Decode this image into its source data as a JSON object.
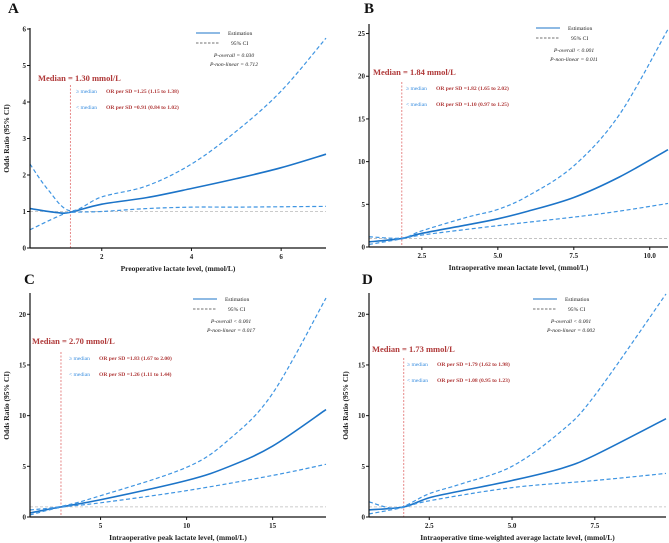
{
  "colors": {
    "estimate": "#1c74c8",
    "ci": "#3f95e2",
    "median_line": "#e06a6a",
    "median_text": "#b03a3a",
    "reference": "#bbbbbb"
  },
  "chart_data": [
    {
      "type": "line",
      "letter": "A",
      "xlabel": "Preoperative lactate level, (mmol/L)",
      "ylabel": "Odds Ratio (95% CI)",
      "xlim": [
        0.4,
        7.0
      ],
      "ylim": [
        0,
        6
      ],
      "xticks": [
        2,
        4,
        6
      ],
      "yticks": [
        0,
        1,
        2,
        3,
        4,
        5,
        6
      ],
      "reference_y": 1,
      "median_x": 1.3,
      "legend": {
        "estimation": "Estimation",
        "ci": "95% CI",
        "p_overall": "P-overall = 0.030",
        "p_nonlinear": "P-non-linear = 0.712"
      },
      "median_label": "Median = 1.30 mmol/L",
      "ge_median": "≥ median",
      "ge_or": "OR per SD =1.25 (1.15 to 1.38)",
      "lt_median": "< median",
      "lt_or": "OR per SD =0.91 (0.84 to 1.02)",
      "series": [
        {
          "name": "Estimation",
          "points": [
            [
              0.4,
              1.08
            ],
            [
              1.0,
              0.97
            ],
            [
              1.3,
              0.98
            ],
            [
              2,
              1.2
            ],
            [
              3,
              1.38
            ],
            [
              4,
              1.63
            ],
            [
              5,
              1.9
            ],
            [
              6,
              2.2
            ],
            [
              7,
              2.57
            ]
          ]
        },
        {
          "name": "95% CI upper",
          "points": [
            [
              0.4,
              2.3
            ],
            [
              0.8,
              1.6
            ],
            [
              1.3,
              1.02
            ],
            [
              2,
              1.4
            ],
            [
              3,
              1.7
            ],
            [
              4,
              2.3
            ],
            [
              5,
              3.2
            ],
            [
              6,
              4.3
            ],
            [
              7,
              5.75
            ]
          ]
        },
        {
          "name": "95% CI lower",
          "points": [
            [
              0.4,
              0.5
            ],
            [
              1.0,
              0.85
            ],
            [
              1.3,
              0.97
            ],
            [
              2,
              1.0
            ],
            [
              3,
              1.08
            ],
            [
              4,
              1.12
            ],
            [
              5,
              1.12
            ],
            [
              6,
              1.13
            ],
            [
              7,
              1.14
            ]
          ]
        }
      ]
    },
    {
      "type": "line",
      "letter": "B",
      "xlabel": "Intraoperative mean lactate level, (mmol/L)",
      "ylabel": "",
      "xlim": [
        0.76,
        10.6
      ],
      "ylim": [
        0,
        26
      ],
      "xticks": [
        2.5,
        5.0,
        7.5,
        10.0
      ],
      "yticks": [
        0,
        5,
        10,
        15,
        20,
        25
      ],
      "reference_y": 1,
      "median_x": 1.84,
      "legend": {
        "estimation": "Estimation",
        "ci": "95% CI",
        "p_overall": "P-overall < 0.001",
        "p_nonlinear": "P-non-linear = 0.011"
      },
      "median_label": "Median = 1.84 mmol/L",
      "ge_median": "≥ median",
      "ge_or": "OR per SD =1.82 (1.65 to 2.02)",
      "lt_median": "< median",
      "lt_or": "OR per SD =1.10 (0.97 to 1.25)",
      "series": [
        {
          "name": "Estimation",
          "points": [
            [
              0.76,
              0.6
            ],
            [
              1.84,
              1
            ],
            [
              2.5,
              1.6
            ],
            [
              4,
              2.6
            ],
            [
              5,
              3.3
            ],
            [
              6,
              4.2
            ],
            [
              7.5,
              5.8
            ],
            [
              9,
              8.2
            ],
            [
              10.6,
              11.4
            ]
          ]
        },
        {
          "name": "95% CI upper",
          "points": [
            [
              0.76,
              1.2
            ],
            [
              1.84,
              1.05
            ],
            [
              2.5,
              1.9
            ],
            [
              4,
              3.5
            ],
            [
              5,
              4.4
            ],
            [
              6,
              6.0
            ],
            [
              7.5,
              9.5
            ],
            [
              9,
              15.5
            ],
            [
              10.6,
              25.5
            ]
          ]
        },
        {
          "name": "95% CI lower",
          "points": [
            [
              0.76,
              0.3
            ],
            [
              1.84,
              0.95
            ],
            [
              2.5,
              1.4
            ],
            [
              5,
              2.5
            ],
            [
              7.5,
              3.5
            ],
            [
              9,
              4.2
            ],
            [
              10.6,
              5.1
            ]
          ]
        }
      ]
    },
    {
      "type": "line",
      "letter": "C",
      "xlabel": "Intraoperative peak lactate level, (mmol/L)",
      "ylabel": "Odds Ratio (95% CI)",
      "xlim": [
        0.9,
        18.1
      ],
      "ylim": [
        0,
        22
      ],
      "xticks": [
        5,
        10,
        15
      ],
      "yticks": [
        0,
        5,
        10,
        15,
        20
      ],
      "reference_y": 1,
      "median_x": 2.7,
      "legend": {
        "estimation": "Estimation",
        "ci": "95% CI",
        "p_overall": "P-overall < 0.001",
        "p_nonlinear": "P-non-linear = 0.017"
      },
      "median_label": "Median = 2.70 mmol/L",
      "ge_median": "≥ median",
      "ge_or": "OR per SD =1.83 (1.67 to 2.00)",
      "lt_median": "< median",
      "lt_or": "OR per SD =1.26 (1.11 to 1.44)",
      "series": [
        {
          "name": "Estimation",
          "points": [
            [
              0.9,
              0.4
            ],
            [
              2.7,
              1
            ],
            [
              5,
              1.7
            ],
            [
              10,
              3.6
            ],
            [
              12.5,
              5
            ],
            [
              15,
              7
            ],
            [
              18.1,
              10.6
            ]
          ]
        },
        {
          "name": "95% CI upper",
          "points": [
            [
              0.9,
              0.7
            ],
            [
              2.7,
              1.05
            ],
            [
              5,
              2.1
            ],
            [
              10,
              4.9
            ],
            [
              12.5,
              7.7
            ],
            [
              15,
              12.2
            ],
            [
              18.1,
              21.6
            ]
          ]
        },
        {
          "name": "95% CI lower",
          "points": [
            [
              0.9,
              0.2
            ],
            [
              2.7,
              0.95
            ],
            [
              5,
              1.4
            ],
            [
              10,
              2.6
            ],
            [
              15,
              4.1
            ],
            [
              18.1,
              5.2
            ]
          ]
        }
      ]
    },
    {
      "type": "line",
      "letter": "D",
      "xlabel": "Intraoperative time-weighted average lactate level, (mmol/L)",
      "ylabel": "Odds Ratio (95% CI)",
      "xlim": [
        0.68,
        9.65
      ],
      "ylim": [
        0,
        22
      ],
      "xticks": [
        2.5,
        5.0,
        7.5
      ],
      "yticks": [
        0,
        5,
        10,
        15,
        20
      ],
      "reference_y": 1,
      "median_x": 1.73,
      "legend": {
        "estimation": "Estimation",
        "ci": "95% CI",
        "p_overall": "P-overall < 0.001",
        "p_nonlinear": "P-non-linear = 0.002"
      },
      "median_label": "Median = 1.73 mmol/L",
      "ge_median": "≥ median",
      "ge_or": "OR per SD =1.79 (1.62 to 1.98)",
      "lt_median": "< median",
      "lt_or": "OR per SD =1.08 (0.95 to 1.23)",
      "series": [
        {
          "name": "Estimation",
          "points": [
            [
              0.68,
              0.7
            ],
            [
              1.73,
              1.0
            ],
            [
              2.5,
              1.9
            ],
            [
              3.5,
              2.6
            ],
            [
              5,
              3.6
            ],
            [
              6.5,
              4.8
            ],
            [
              7.5,
              6.1
            ],
            [
              9.65,
              9.7
            ]
          ]
        },
        {
          "name": "95% CI upper",
          "points": [
            [
              0.68,
              1.5
            ],
            [
              1.3,
              0.9
            ],
            [
              1.73,
              1.05
            ],
            [
              2.5,
              2.3
            ],
            [
              3.5,
              3.3
            ],
            [
              5,
              5.0
            ],
            [
              6.5,
              8.5
            ],
            [
              7.5,
              12
            ],
            [
              9.65,
              22
            ]
          ]
        },
        {
          "name": "95% CI lower",
          "points": [
            [
              0.68,
              0.3
            ],
            [
              1.73,
              0.95
            ],
            [
              2.5,
              1.6
            ],
            [
              5,
              2.9
            ],
            [
              7.5,
              3.6
            ],
            [
              9.65,
              4.3
            ]
          ]
        }
      ]
    }
  ]
}
